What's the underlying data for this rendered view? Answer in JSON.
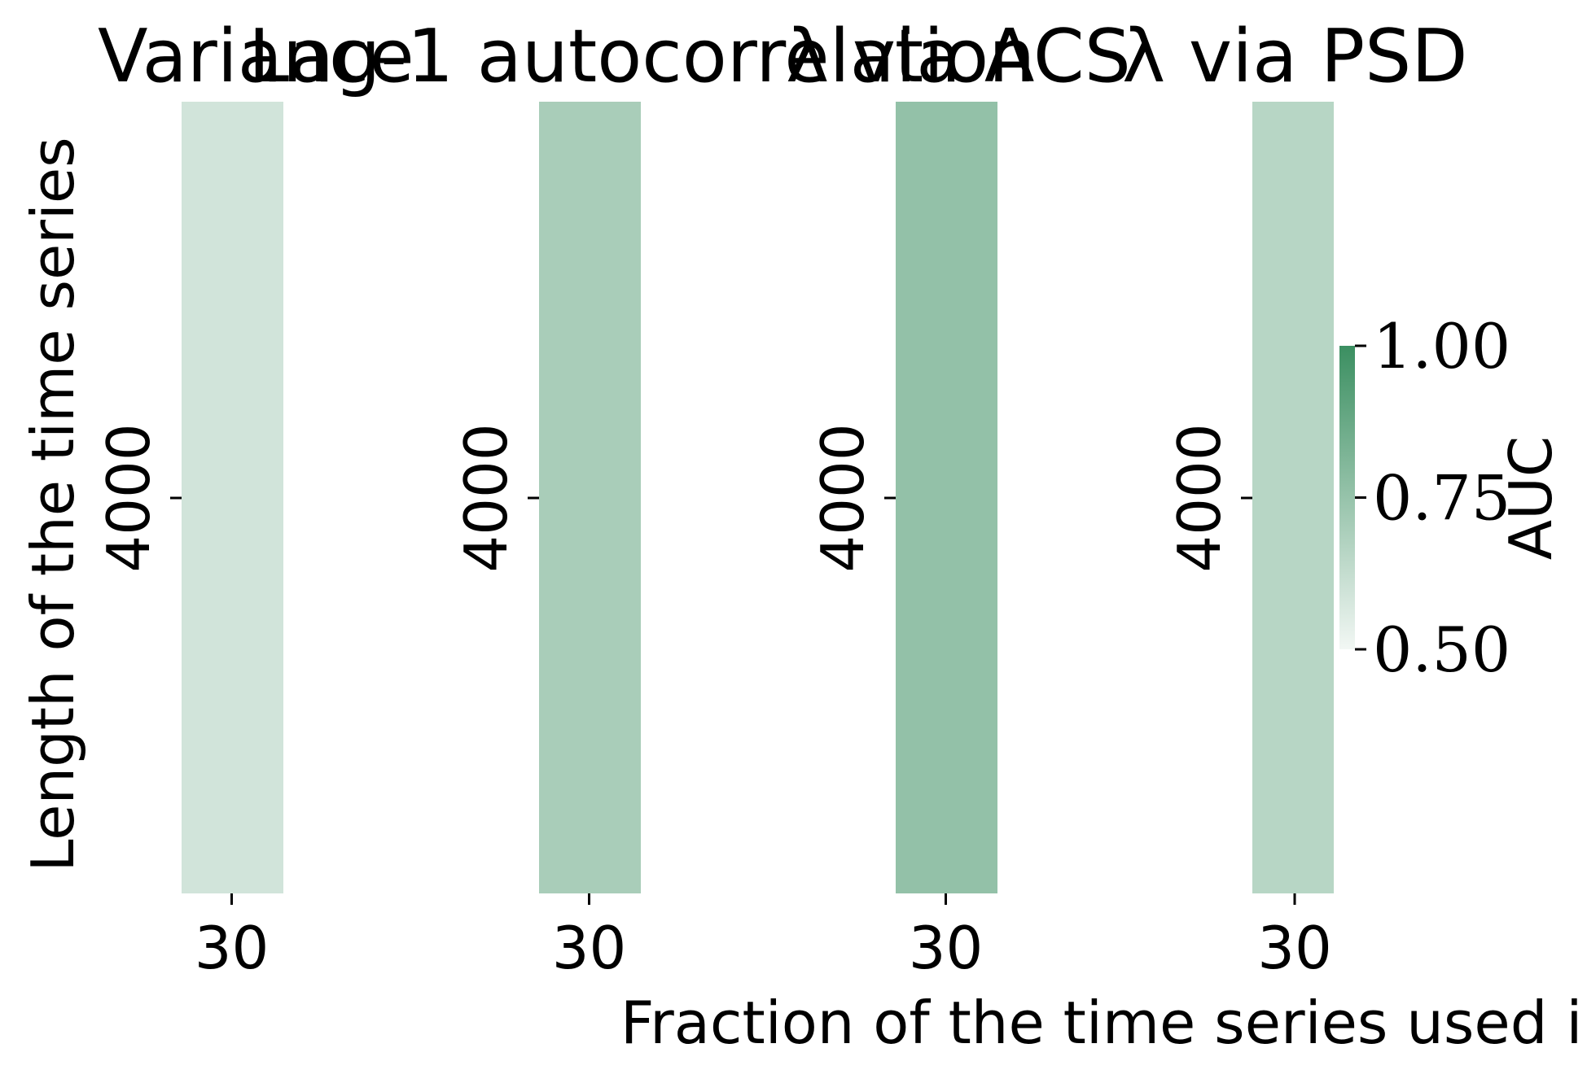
{
  "chart_data": [
    {
      "type": "heatmap",
      "title": "Variance",
      "x_categories": [
        "30"
      ],
      "y_categories": [
        "4000"
      ],
      "values": [
        [
          0.59
        ]
      ]
    },
    {
      "type": "heatmap",
      "title": "Lag-1 autocorrelation",
      "x_categories": [
        "30"
      ],
      "y_categories": [
        "4000"
      ],
      "values": [
        [
          0.7
        ]
      ]
    },
    {
      "type": "heatmap",
      "title": "λ via ACS",
      "x_categories": [
        "30"
      ],
      "y_categories": [
        "4000"
      ],
      "values": [
        [
          0.76
        ]
      ]
    },
    {
      "type": "heatmap",
      "title": "λ via PSD",
      "x_categories": [
        "30"
      ],
      "y_categories": [
        "4000"
      ],
      "values": [
        [
          0.66
        ]
      ]
    }
  ],
  "shared": {
    "ylabel": "Length of the time series",
    "xlabel": "Fraction of the time series used in es",
    "colorbar": {
      "label": "AUC",
      "range": [
        0.5,
        1.0
      ],
      "ticks": [
        "0.50",
        "0.75",
        "1.00"
      ],
      "color_low": "#f2f7f4",
      "color_high": "#3b8f61"
    }
  }
}
